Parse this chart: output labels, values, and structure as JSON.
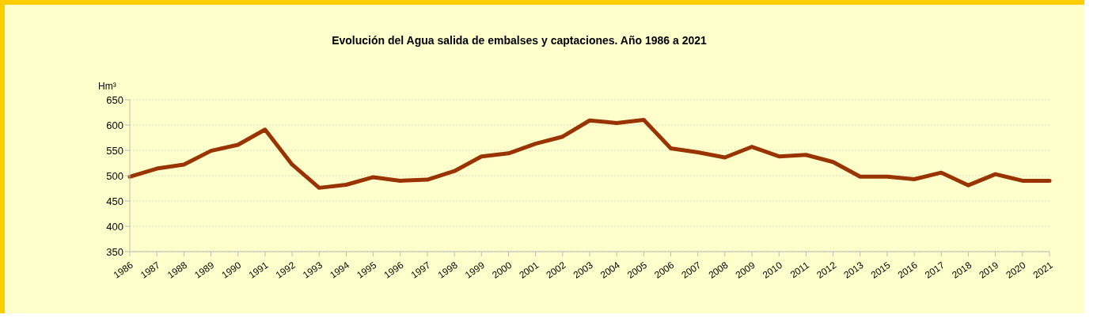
{
  "chart_data": {
    "type": "line",
    "title": "Evolución del Agua salida de embalses y captaciones. Año 1986 a 2021",
    "ylabel": "Hm³",
    "categories": [
      "1986",
      "1987",
      "1988",
      "1989",
      "1990",
      "1991",
      "1992",
      "1993",
      "1994",
      "1995",
      "1996",
      "1997",
      "1998",
      "1999",
      "2000",
      "2001",
      "2002",
      "2003",
      "2004",
      "2005",
      "2006",
      "2007",
      "2008",
      "2009",
      "2010",
      "2011",
      "2012",
      "2013",
      "2015",
      "2016",
      "2017",
      "2018",
      "2019",
      "2020",
      "2021"
    ],
    "series": [
      {
        "color": "#993300",
        "values": [
          498,
          514,
          522,
          549,
          561,
          591,
          522,
          476,
          482,
          497,
          490,
          492,
          509,
          538,
          544,
          563,
          577,
          609,
          604,
          610,
          554,
          546,
          536,
          557,
          538,
          541,
          527,
          498,
          498,
          493,
          506,
          481,
          503,
          490,
          490
        ]
      }
    ],
    "ylim": [
      350,
      650
    ],
    "yticks": [
      350,
      400,
      450,
      500,
      550,
      600,
      650
    ],
    "grid": "y",
    "legend": false,
    "marker": "none",
    "line_style": "solid"
  }
}
